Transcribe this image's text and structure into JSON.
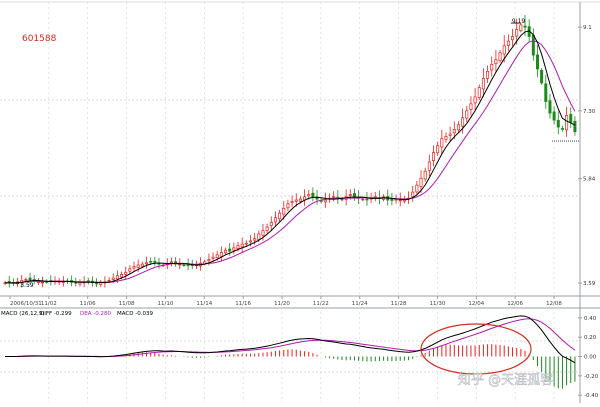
{
  "chart_data": [
    {
      "type": "candlestick",
      "stock_code": "601588",
      "y_tick_labels": [
        "9.1",
        "7.30",
        "5.84",
        "3.59"
      ],
      "ylim": [
        3.4,
        9.6
      ],
      "x_tick_labels": [
        "2006/10/31",
        "11/02",
        "11/06",
        "11/08",
        "11/10",
        "11/14",
        "11/16",
        "11/20",
        "11/22",
        "11/24",
        "11/28",
        "11/30",
        "12/04",
        "12/06",
        "12/08"
      ],
      "annotations": {
        "high": "9.19",
        "low": "3.59"
      },
      "closes": [
        3.6,
        3.59,
        3.6,
        3.62,
        3.65,
        3.67,
        3.66,
        3.64,
        3.62,
        3.61,
        3.62,
        3.63,
        3.64,
        3.63,
        3.62,
        3.62,
        3.61,
        3.6,
        3.61,
        3.62,
        3.61,
        3.6,
        3.59,
        3.6,
        3.62,
        3.65,
        3.7,
        3.75,
        3.78,
        3.82,
        3.9,
        3.95,
        3.98,
        4.0,
        4.03,
        4.05,
        4.04,
        4.0,
        3.98,
        4.0,
        4.05,
        4.02,
        4.0,
        3.98,
        3.97,
        3.97,
        3.99,
        4.02,
        4.05,
        4.1,
        4.15,
        4.2,
        4.25,
        4.3,
        4.28,
        4.35,
        4.4,
        4.43,
        4.45,
        4.5,
        4.55,
        4.65,
        4.72,
        4.8,
        4.9,
        5.0,
        5.1,
        5.2,
        5.3,
        5.35,
        5.38,
        5.4,
        5.45,
        5.5,
        5.45,
        5.4,
        5.35,
        5.38,
        5.42,
        5.45,
        5.42,
        5.4,
        5.45,
        5.5,
        5.45,
        5.42,
        5.4,
        5.38,
        5.42,
        5.45,
        5.42,
        5.45,
        5.38,
        5.37,
        5.4,
        5.38,
        5.4,
        5.42,
        5.55,
        5.7,
        5.85,
        6.0,
        6.2,
        6.4,
        6.55,
        6.7,
        6.75,
        6.8,
        6.9,
        7.0,
        7.15,
        7.3,
        7.45,
        7.6,
        7.8,
        8.0,
        8.15,
        8.3,
        8.4,
        8.55,
        8.7,
        8.8,
        8.9,
        9.05,
        9.15,
        9.1,
        8.9,
        8.5,
        8.2,
        7.9,
        7.5,
        7.25,
        7.1,
        6.95,
        6.9,
        7.2,
        7.05,
        6.85
      ]
    },
    {
      "type": "macd",
      "legend": {
        "title": "MACD (26,12,9)",
        "diff": "DIFF -0.299",
        "dea": "DEA -0.280",
        "macd": "MACD -0.039"
      },
      "y_tick_labels": [
        "0.40",
        "0.20",
        "0.00",
        "-0.20",
        "-0.40"
      ],
      "ylim": [
        -0.45,
        0.45
      ]
    }
  ],
  "watermark": "知乎 @天涯孤客",
  "colors": {
    "up": "#e8201b",
    "down": "#1b8a1b",
    "ma5": "#000000",
    "ma10": "#b01ab0",
    "axis": "#9aa0a6",
    "grid": "#cfd3d8",
    "code": "#d02a1c",
    "ellipse": "#d0301f"
  }
}
